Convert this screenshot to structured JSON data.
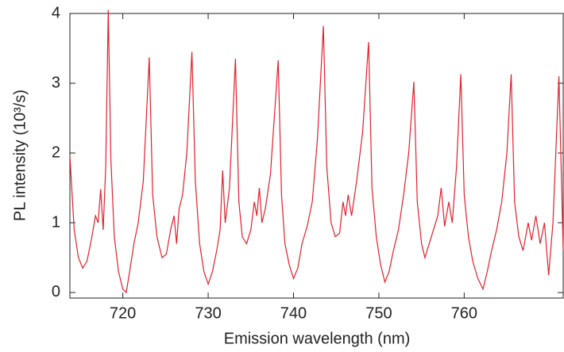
{
  "chart_data": {
    "type": "line",
    "xlabel": "Emission wavelength (nm)",
    "ylabel": "PL intensity (10³/s)",
    "xlim": [
      713.8,
      771.6
    ],
    "ylim": [
      -0.08,
      4.0
    ],
    "xticks": [
      720,
      730,
      740,
      750,
      760
    ],
    "yticks": [
      0,
      1,
      2,
      3,
      4
    ],
    "series": [
      {
        "color": "#e0202a",
        "x": [
          713.8,
          714.3,
          714.8,
          715.3,
          715.8,
          716.3,
          716.8,
          717.1,
          717.4,
          717.7,
          718.0,
          718.3,
          718.6,
          719.0,
          719.5,
          720.0,
          720.4,
          720.8,
          721.3,
          721.8,
          722.4,
          723.1,
          723.5,
          724.0,
          724.6,
          725.1,
          725.6,
          726.0,
          726.3,
          726.6,
          727.0,
          727.5,
          728.1,
          728.5,
          729.0,
          729.5,
          730.0,
          730.5,
          731.0,
          731.4,
          731.7,
          732.0,
          732.5,
          733.2,
          733.6,
          734.0,
          734.5,
          735.0,
          735.4,
          735.7,
          736.0,
          736.3,
          736.7,
          737.3,
          738.2,
          738.6,
          739.0,
          739.5,
          740.0,
          740.5,
          741.0,
          741.6,
          742.2,
          742.8,
          743.5,
          743.9,
          744.4,
          744.9,
          745.4,
          745.8,
          746.1,
          746.4,
          746.8,
          747.4,
          748.1,
          748.8,
          749.2,
          749.7,
          750.2,
          750.7,
          751.2,
          751.7,
          752.3,
          752.9,
          753.5,
          754.1,
          754.5,
          755.0,
          755.4,
          755.9,
          756.4,
          756.9,
          757.3,
          757.7,
          758.2,
          758.6,
          759.1,
          759.6,
          760.0,
          760.5,
          761.0,
          761.6,
          762.2,
          762.7,
          763.2,
          763.8,
          764.4,
          765.0,
          765.5,
          765.9,
          766.4,
          766.9,
          767.5,
          767.9,
          768.4,
          768.9,
          769.4,
          769.9,
          770.4,
          771.1,
          771.6
        ],
        "values": [
          1.95,
          0.9,
          0.5,
          0.35,
          0.45,
          0.75,
          1.1,
          1.0,
          1.48,
          0.9,
          1.8,
          4.05,
          1.9,
          0.8,
          0.3,
          0.05,
          0.0,
          0.3,
          0.7,
          1.0,
          1.6,
          3.37,
          1.4,
          0.8,
          0.5,
          0.55,
          0.9,
          1.1,
          0.7,
          1.2,
          1.4,
          2.0,
          3.45,
          1.6,
          0.7,
          0.3,
          0.12,
          0.3,
          0.6,
          0.9,
          1.75,
          1.0,
          1.5,
          3.35,
          1.3,
          0.8,
          0.7,
          0.9,
          1.3,
          1.1,
          1.5,
          1.0,
          1.2,
          1.7,
          3.33,
          1.4,
          0.7,
          0.4,
          0.2,
          0.35,
          0.7,
          0.95,
          1.3,
          2.2,
          3.82,
          1.8,
          1.0,
          0.8,
          0.85,
          1.3,
          1.1,
          1.4,
          1.1,
          1.6,
          2.3,
          3.59,
          1.5,
          0.8,
          0.4,
          0.15,
          0.3,
          0.6,
          0.9,
          1.4,
          2.0,
          3.02,
          1.3,
          0.7,
          0.5,
          0.7,
          0.9,
          1.1,
          1.5,
          0.95,
          1.3,
          1.0,
          1.8,
          3.13,
          1.4,
          0.8,
          0.45,
          0.2,
          0.05,
          0.3,
          0.6,
          0.9,
          1.3,
          2.0,
          3.13,
          1.3,
          0.8,
          0.6,
          1.0,
          0.75,
          1.1,
          0.7,
          1.0,
          0.25,
          1.0,
          3.1,
          0.6
        ]
      }
    ]
  }
}
